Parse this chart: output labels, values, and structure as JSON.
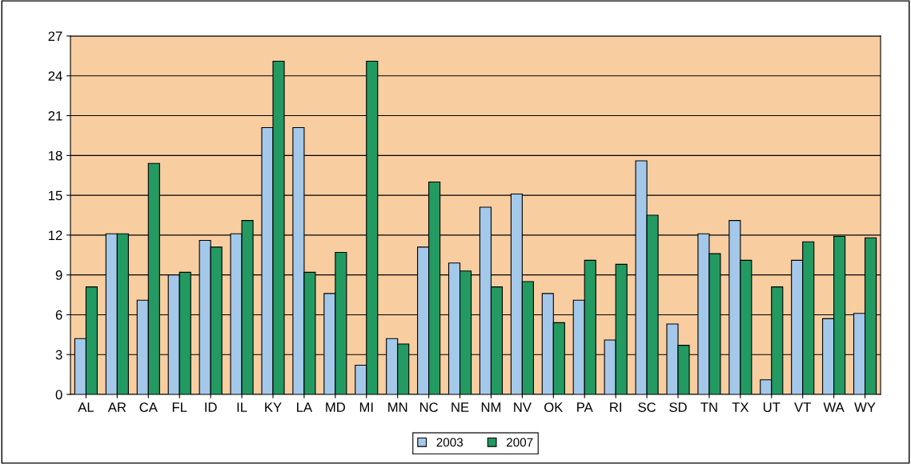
{
  "chart_data": {
    "type": "bar",
    "categories": [
      "AL",
      "AR",
      "CA",
      "FL",
      "ID",
      "IL",
      "KY",
      "LA",
      "MD",
      "MI",
      "MN",
      "NC",
      "NE",
      "NM",
      "NV",
      "OK",
      "PA",
      "RI",
      "SC",
      "SD",
      "TN",
      "TX",
      "UT",
      "VT",
      "WA",
      "WY"
    ],
    "series": [
      {
        "name": "2003",
        "color": "#a4c8ea",
        "values": [
          4.2,
          12.1,
          7.1,
          9.0,
          11.6,
          12.1,
          20.1,
          20.1,
          7.6,
          2.2,
          4.2,
          11.1,
          9.9,
          14.1,
          15.1,
          7.6,
          7.1,
          4.1,
          17.6,
          5.3,
          12.1,
          13.1,
          1.1,
          10.1,
          5.7,
          6.1
        ]
      },
      {
        "name": "2007",
        "color": "#229a62",
        "values": [
          8.1,
          12.1,
          17.4,
          9.2,
          11.1,
          13.1,
          25.1,
          9.2,
          10.7,
          25.1,
          3.8,
          16.0,
          9.3,
          8.1,
          8.5,
          5.4,
          10.1,
          9.8,
          13.5,
          3.7,
          10.6,
          10.1,
          8.1,
          11.5,
          11.9,
          11.8
        ]
      }
    ],
    "ylim": [
      0,
      27
    ],
    "yticks": [
      0,
      3,
      6,
      9,
      12,
      15,
      18,
      21,
      24,
      27
    ],
    "grid": "y",
    "legend": "bottom"
  }
}
